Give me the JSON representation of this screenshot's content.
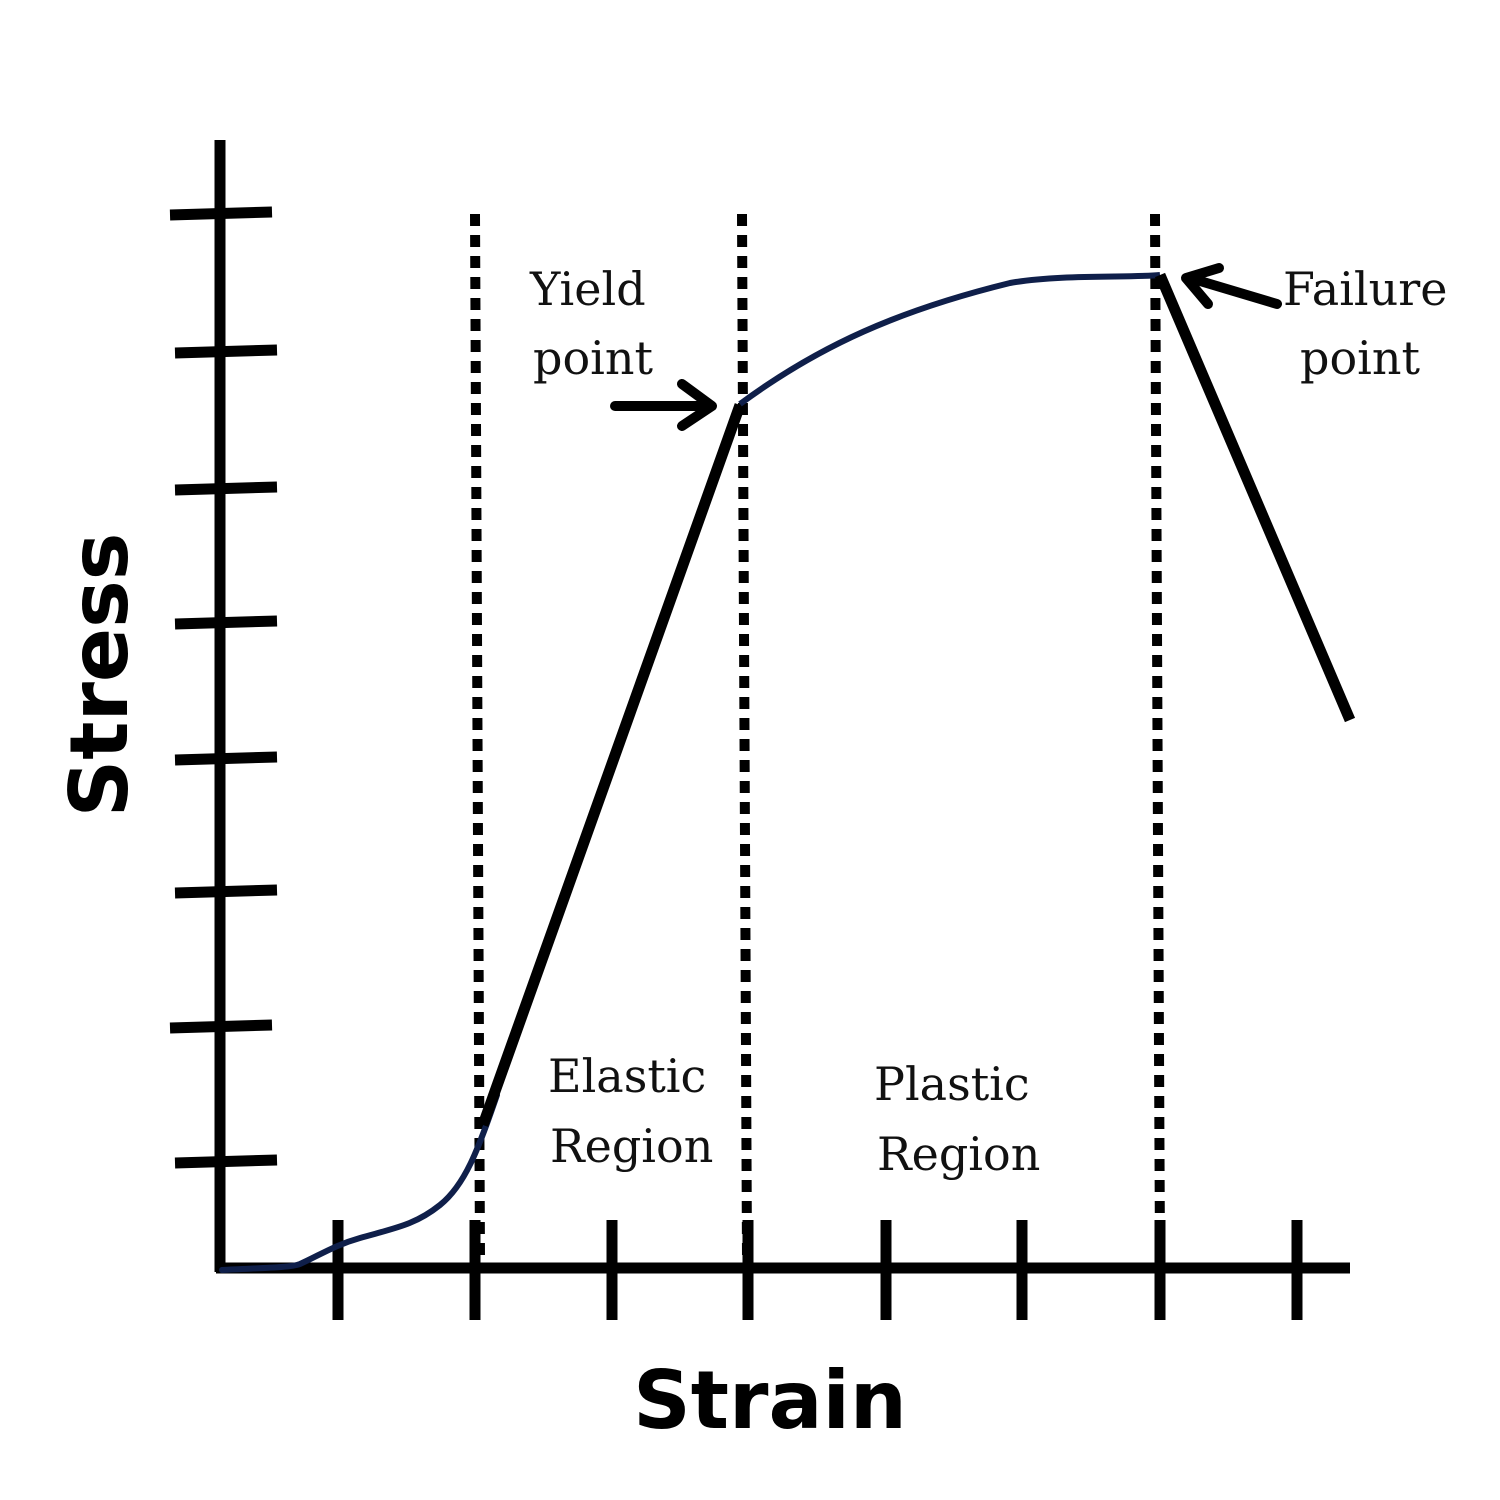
{
  "axes": {
    "x_label": "Strain",
    "y_label": "Stress",
    "x_ticks": 8,
    "y_ticks": 8
  },
  "annotations": {
    "yield": [
      "Yield",
      "point"
    ],
    "failure": [
      "Failure",
      "point"
    ],
    "elastic": [
      "Elastic",
      "Region"
    ],
    "plastic": [
      "Plastic",
      "Region"
    ]
  },
  "colors": {
    "axis": "#000000",
    "curve_line": "#000000",
    "curve_toe": "#0f1f4a",
    "text": "#111111"
  }
}
